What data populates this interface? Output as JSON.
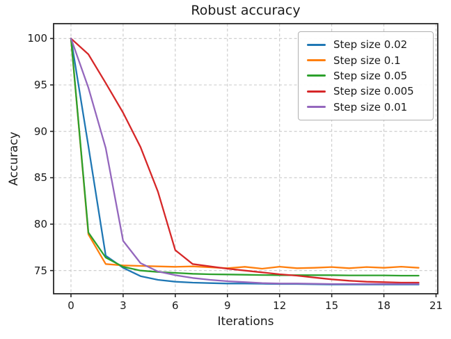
{
  "chart_data": {
    "type": "line",
    "title": "Robust accuracy",
    "xlabel": "Iterations",
    "ylabel": "Accuracy",
    "xlim": [
      -1,
      21.1
    ],
    "ylim": [
      72.5,
      101.6
    ],
    "xticks": [
      0,
      3,
      6,
      9,
      12,
      15,
      18,
      21
    ],
    "yticks": [
      75,
      80,
      85,
      90,
      95,
      100
    ],
    "grid": true,
    "grid_style": "dashed",
    "legend_position": "upper right",
    "x": [
      0,
      1,
      2,
      3,
      4,
      5,
      6,
      7,
      8,
      9,
      10,
      11,
      12,
      13,
      14,
      15,
      16,
      17,
      18,
      19,
      20
    ],
    "series": [
      {
        "name": "Step size 0.02",
        "color": "#1f77b4",
        "values": [
          100,
          88.4,
          76.6,
          75.3,
          74.4,
          74.0,
          73.8,
          73.7,
          73.65,
          73.6,
          73.6,
          73.58,
          73.55,
          73.55,
          73.52,
          73.5,
          73.5,
          73.5,
          73.5,
          73.5,
          73.5
        ]
      },
      {
        "name": "Step size 0.1",
        "color": "#ff7f0e",
        "values": [
          100,
          78.9,
          75.7,
          75.55,
          75.5,
          75.45,
          75.4,
          75.45,
          75.35,
          75.25,
          75.4,
          75.2,
          75.42,
          75.25,
          75.3,
          75.38,
          75.25,
          75.38,
          75.3,
          75.42,
          75.3
        ]
      },
      {
        "name": "Step size 0.05",
        "color": "#2ca02c",
        "values": [
          100,
          79.1,
          76.4,
          75.4,
          75.0,
          74.85,
          74.75,
          74.65,
          74.6,
          74.58,
          74.55,
          74.52,
          74.5,
          74.5,
          74.5,
          74.5,
          74.48,
          74.48,
          74.48,
          74.45,
          74.45
        ]
      },
      {
        "name": "Step size 0.005",
        "color": "#d62728",
        "values": [
          100,
          98.3,
          95.2,
          92.0,
          88.3,
          83.5,
          77.2,
          75.7,
          75.45,
          75.2,
          75.0,
          74.8,
          74.6,
          74.45,
          74.25,
          74.05,
          73.9,
          73.8,
          73.75,
          73.7,
          73.7
        ]
      },
      {
        "name": "Step size 0.01",
        "color": "#9467bd",
        "values": [
          100,
          94.7,
          88.2,
          78.2,
          75.8,
          74.9,
          74.5,
          74.2,
          74.0,
          73.85,
          73.75,
          73.65,
          73.6,
          73.6,
          73.58,
          73.55,
          73.55,
          73.55,
          73.55,
          73.55,
          73.55
        ]
      }
    ]
  }
}
